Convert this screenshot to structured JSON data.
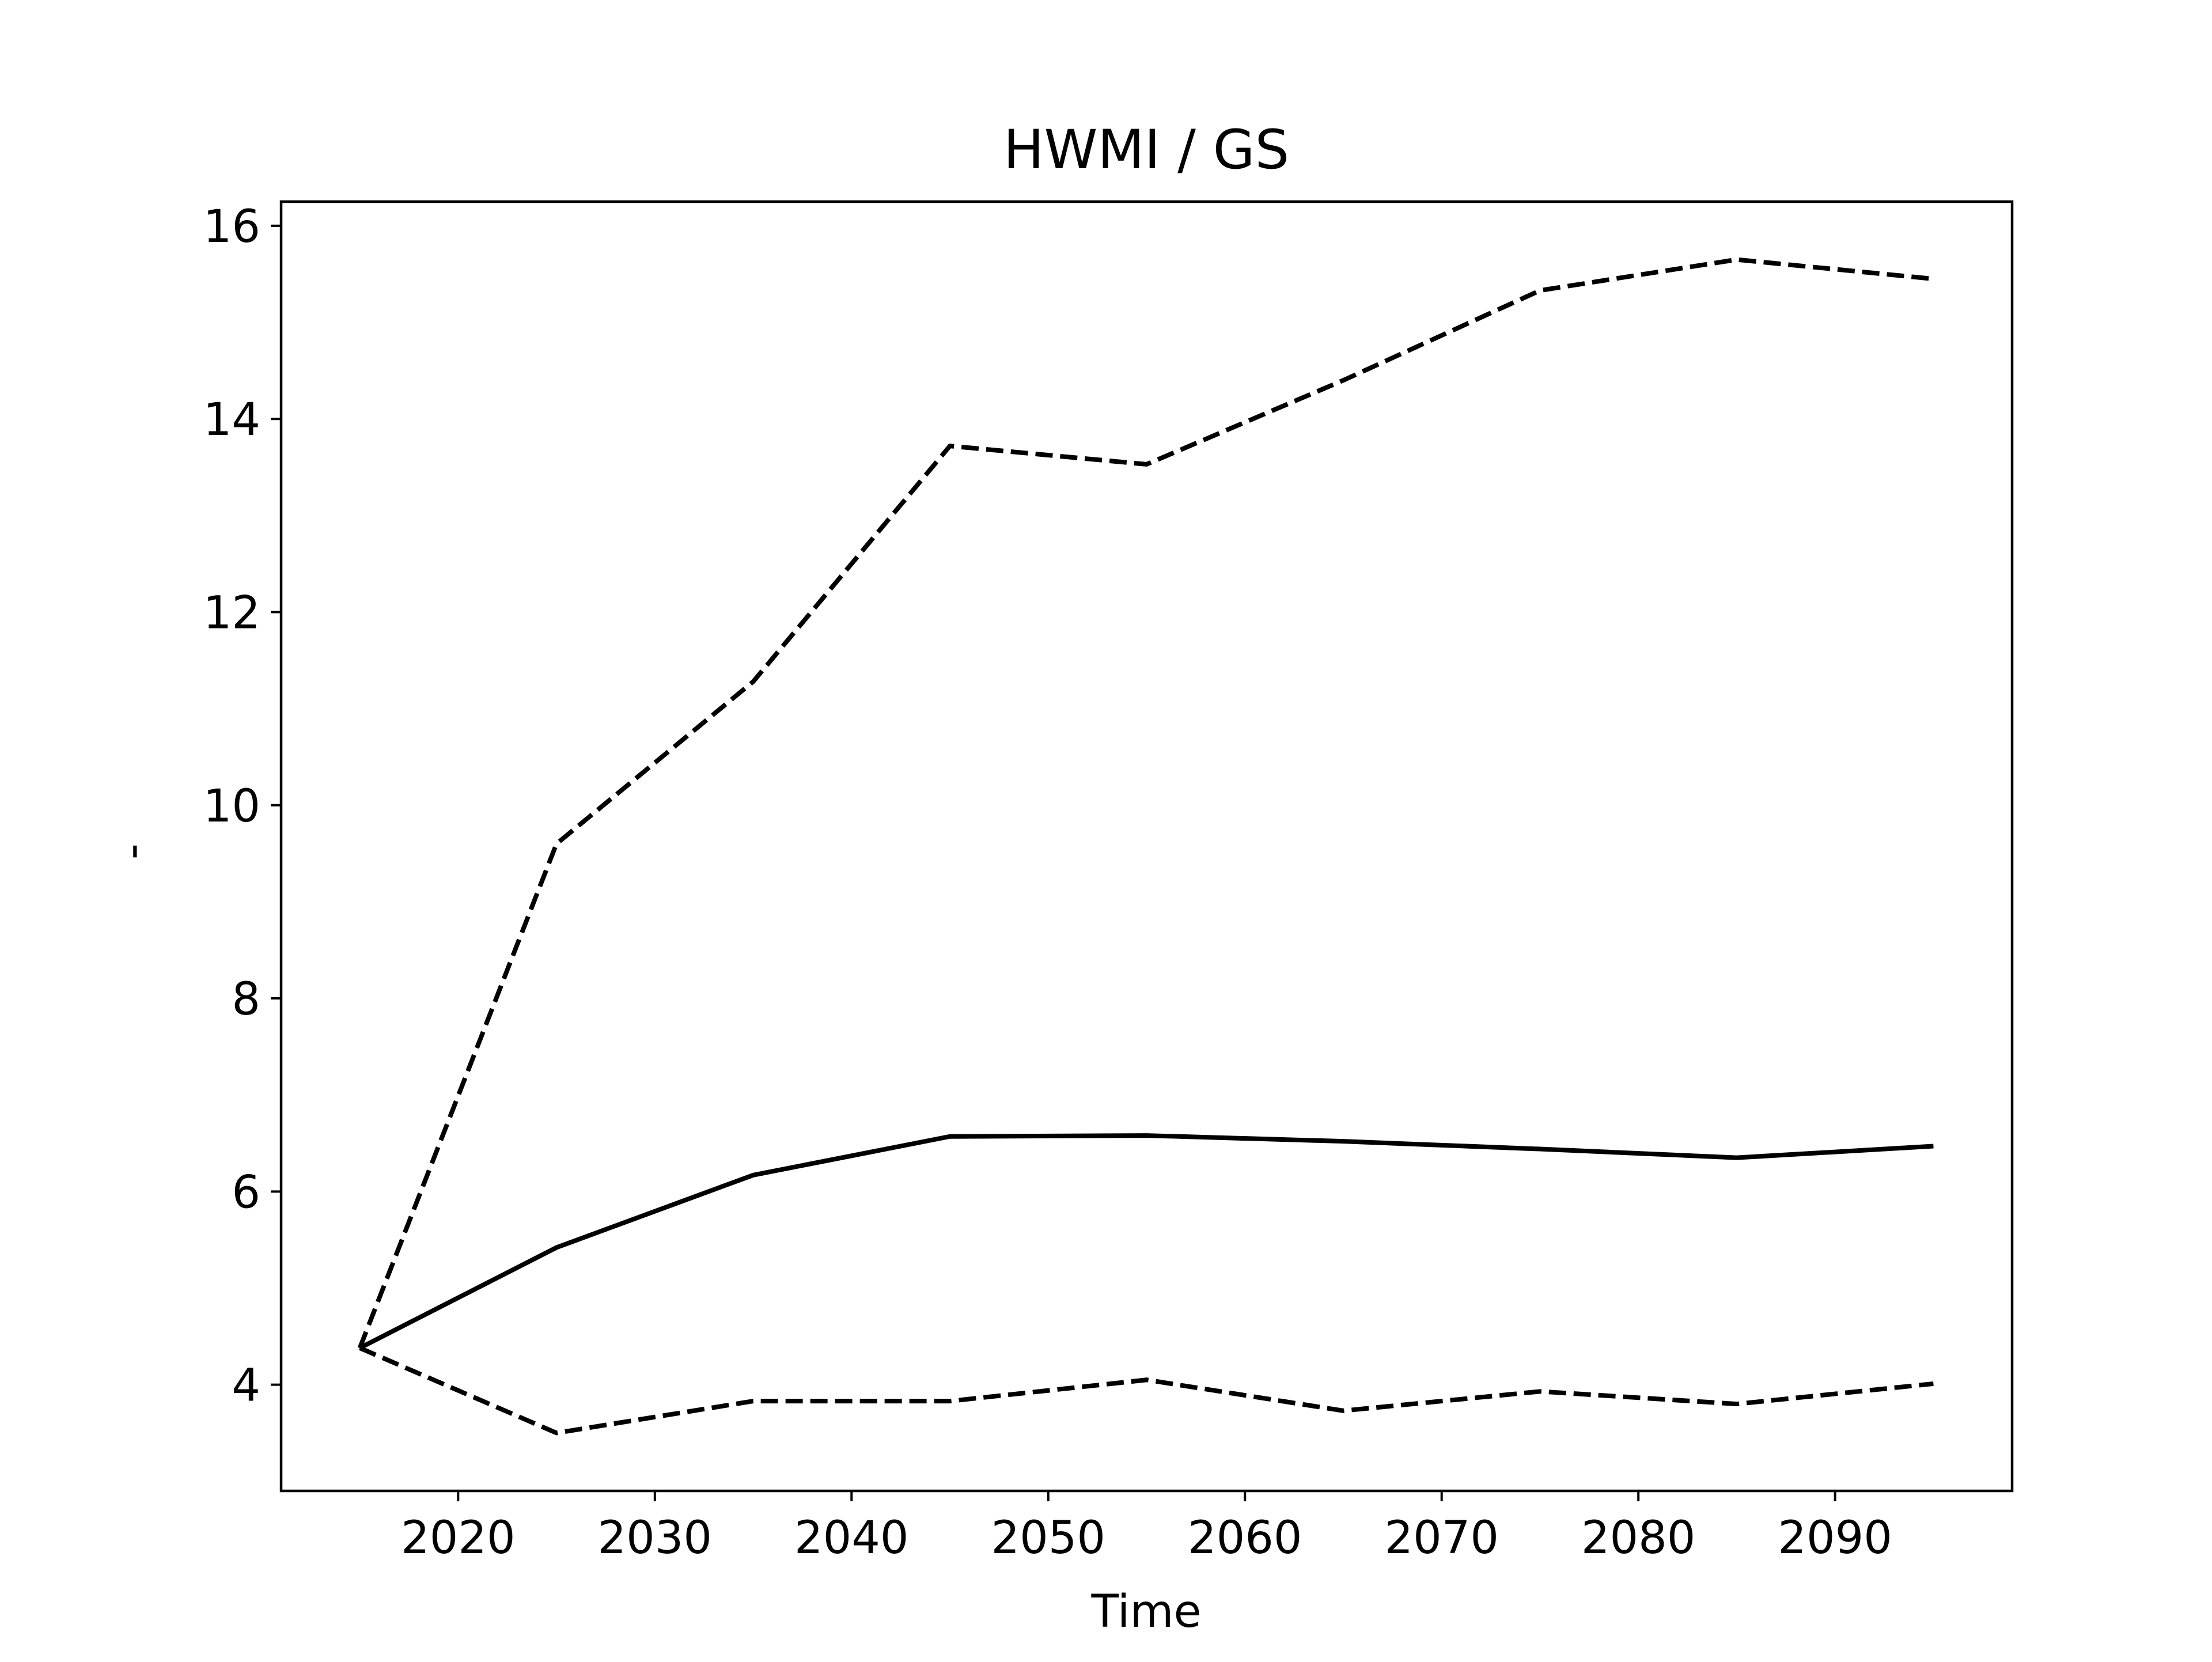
{
  "chart_data": {
    "type": "line",
    "title": "HWMI / GS",
    "xlabel": "Time",
    "ylabel": "-",
    "x": [
      2015,
      2025,
      2035,
      2045,
      2055,
      2065,
      2075,
      2085,
      2095
    ],
    "xlim": [
      2011,
      2099
    ],
    "ylim": [
      2.9,
      16.25
    ],
    "xticks": [
      2020,
      2030,
      2040,
      2050,
      2060,
      2070,
      2080,
      2090
    ],
    "yticks": [
      4,
      6,
      8,
      10,
      12,
      14,
      16
    ],
    "grid": false,
    "series": [
      {
        "style": "solid",
        "color": "#000000",
        "values": [
          4.38,
          5.42,
          6.17,
          6.57,
          6.58,
          6.52,
          6.44,
          6.35,
          6.47
        ]
      },
      {
        "style": "dashed",
        "color": "#000000",
        "values": [
          4.38,
          9.6,
          11.28,
          13.72,
          13.53,
          14.4,
          15.33,
          15.65,
          15.45
        ]
      },
      {
        "style": "dashed",
        "color": "#000000",
        "values": [
          4.38,
          3.5,
          3.83,
          3.83,
          4.05,
          3.73,
          3.93,
          3.8,
          4.01
        ]
      }
    ]
  }
}
